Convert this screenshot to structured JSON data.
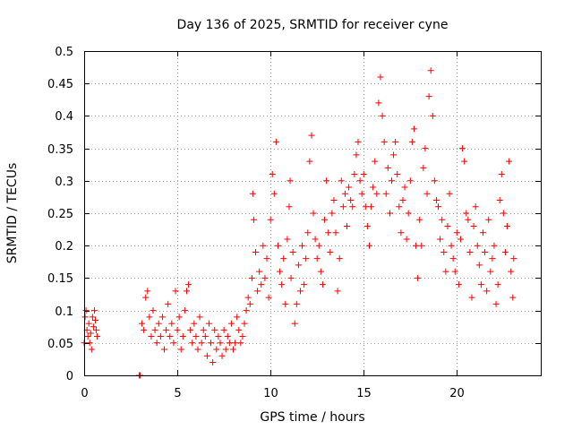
{
  "chart_data": {
    "type": "scatter",
    "title": "Day 136 of 2025, SRMTID for receiver cyne",
    "xlabel": "GPS time / hours",
    "ylabel": "SRMTID / TECUs",
    "xlim": [
      0,
      24.5
    ],
    "ylim": [
      0,
      0.5
    ],
    "xticks": [
      0,
      5,
      10,
      15,
      20
    ],
    "xtick_labels": [
      "0",
      "5",
      "10",
      "15",
      "20"
    ],
    "yticks": [
      0,
      0.05,
      0.1,
      0.15,
      0.2,
      0.25,
      0.3,
      0.35,
      0.4,
      0.45,
      0.5
    ],
    "ytick_labels": [
      "0",
      "0.05",
      "0.1",
      "0.15",
      "0.2",
      "0.25",
      "0.3",
      "0.35",
      "0.4",
      "0.45",
      "0.5"
    ],
    "grid": true,
    "marker": "plus",
    "color": "#ff0000",
    "series": [
      {
        "name": "SRMTID",
        "points": [
          [
            0.0,
            0.05
          ],
          [
            0.05,
            0.09
          ],
          [
            0.1,
            0.1
          ],
          [
            0.15,
            0.07
          ],
          [
            0.2,
            0.06
          ],
          [
            0.25,
            0.08
          ],
          [
            0.3,
            0.05
          ],
          [
            0.35,
            0.065
          ],
          [
            0.4,
            0.04
          ],
          [
            0.45,
            0.09
          ],
          [
            0.5,
            0.075
          ],
          [
            0.55,
            0.1
          ],
          [
            0.6,
            0.085
          ],
          [
            0.65,
            0.07
          ],
          [
            0.7,
            0.06
          ],
          [
            2.95,
            0.0
          ],
          [
            3.0,
            0.0
          ],
          [
            3.1,
            0.08
          ],
          [
            3.2,
            0.07
          ],
          [
            3.3,
            0.12
          ],
          [
            3.4,
            0.13
          ],
          [
            3.5,
            0.09
          ],
          [
            3.6,
            0.06
          ],
          [
            3.7,
            0.1
          ],
          [
            3.8,
            0.07
          ],
          [
            3.9,
            0.05
          ],
          [
            4.0,
            0.08
          ],
          [
            4.1,
            0.06
          ],
          [
            4.2,
            0.09
          ],
          [
            4.3,
            0.04
          ],
          [
            4.4,
            0.07
          ],
          [
            4.5,
            0.11
          ],
          [
            4.6,
            0.06
          ],
          [
            4.7,
            0.08
          ],
          [
            4.8,
            0.05
          ],
          [
            4.9,
            0.13
          ],
          [
            5.0,
            0.07
          ],
          [
            5.1,
            0.09
          ],
          [
            5.2,
            0.04
          ],
          [
            5.3,
            0.06
          ],
          [
            5.4,
            0.1
          ],
          [
            5.5,
            0.13
          ],
          [
            5.6,
            0.14
          ],
          [
            5.7,
            0.07
          ],
          [
            5.8,
            0.05
          ],
          [
            5.9,
            0.08
          ],
          [
            6.0,
            0.06
          ],
          [
            6.1,
            0.04
          ],
          [
            6.2,
            0.09
          ],
          [
            6.3,
            0.05
          ],
          [
            6.4,
            0.07
          ],
          [
            6.5,
            0.06
          ],
          [
            6.6,
            0.03
          ],
          [
            6.7,
            0.08
          ],
          [
            6.8,
            0.05
          ],
          [
            6.9,
            0.02
          ],
          [
            7.0,
            0.07
          ],
          [
            7.1,
            0.04
          ],
          [
            7.2,
            0.06
          ],
          [
            7.3,
            0.05
          ],
          [
            7.4,
            0.03
          ],
          [
            7.5,
            0.07
          ],
          [
            7.6,
            0.04
          ],
          [
            7.7,
            0.06
          ],
          [
            7.8,
            0.05
          ],
          [
            7.9,
            0.08
          ],
          [
            8.0,
            0.04
          ],
          [
            8.1,
            0.05
          ],
          [
            8.2,
            0.09
          ],
          [
            8.3,
            0.07
          ],
          [
            8.4,
            0.05
          ],
          [
            8.5,
            0.06
          ],
          [
            8.6,
            0.08
          ],
          [
            8.7,
            0.1
          ],
          [
            8.8,
            0.12
          ],
          [
            8.9,
            0.11
          ],
          [
            9.0,
            0.15
          ],
          [
            9.05,
            0.28
          ],
          [
            9.1,
            0.24
          ],
          [
            9.2,
            0.19
          ],
          [
            9.3,
            0.13
          ],
          [
            9.4,
            0.16
          ],
          [
            9.5,
            0.14
          ],
          [
            9.6,
            0.2
          ],
          [
            9.7,
            0.15
          ],
          [
            9.8,
            0.18
          ],
          [
            9.9,
            0.12
          ],
          [
            10.0,
            0.24
          ],
          [
            10.1,
            0.31
          ],
          [
            10.2,
            0.28
          ],
          [
            10.3,
            0.36
          ],
          [
            10.4,
            0.2
          ],
          [
            10.5,
            0.16
          ],
          [
            10.6,
            0.14
          ],
          [
            10.7,
            0.18
          ],
          [
            10.8,
            0.11
          ],
          [
            10.9,
            0.21
          ],
          [
            11.0,
            0.26
          ],
          [
            11.05,
            0.3
          ],
          [
            11.1,
            0.15
          ],
          [
            11.2,
            0.19
          ],
          [
            11.3,
            0.08
          ],
          [
            11.4,
            0.11
          ],
          [
            11.5,
            0.17
          ],
          [
            11.6,
            0.13
          ],
          [
            11.7,
            0.2
          ],
          [
            11.8,
            0.14
          ],
          [
            11.9,
            0.18
          ],
          [
            12.0,
            0.22
          ],
          [
            12.1,
            0.33
          ],
          [
            12.2,
            0.37
          ],
          [
            12.3,
            0.25
          ],
          [
            12.4,
            0.21
          ],
          [
            12.5,
            0.18
          ],
          [
            12.6,
            0.2
          ],
          [
            12.7,
            0.16
          ],
          [
            12.8,
            0.14
          ],
          [
            12.9,
            0.24
          ],
          [
            13.0,
            0.3
          ],
          [
            13.1,
            0.22
          ],
          [
            13.2,
            0.19
          ],
          [
            13.3,
            0.25
          ],
          [
            13.4,
            0.27
          ],
          [
            13.5,
            0.22
          ],
          [
            13.6,
            0.13
          ],
          [
            13.7,
            0.18
          ],
          [
            13.8,
            0.3
          ],
          [
            13.9,
            0.26
          ],
          [
            14.0,
            0.28
          ],
          [
            14.1,
            0.23
          ],
          [
            14.2,
            0.29
          ],
          [
            14.3,
            0.27
          ],
          [
            14.4,
            0.26
          ],
          [
            14.5,
            0.31
          ],
          [
            14.6,
            0.34
          ],
          [
            14.7,
            0.36
          ],
          [
            14.8,
            0.3
          ],
          [
            14.9,
            0.28
          ],
          [
            15.0,
            0.31
          ],
          [
            15.1,
            0.26
          ],
          [
            15.2,
            0.23
          ],
          [
            15.3,
            0.2
          ],
          [
            15.4,
            0.26
          ],
          [
            15.5,
            0.29
          ],
          [
            15.6,
            0.33
          ],
          [
            15.7,
            0.28
          ],
          [
            15.8,
            0.42
          ],
          [
            15.9,
            0.46
          ],
          [
            16.0,
            0.4
          ],
          [
            16.1,
            0.36
          ],
          [
            16.2,
            0.28
          ],
          [
            16.3,
            0.32
          ],
          [
            16.4,
            0.25
          ],
          [
            16.5,
            0.3
          ],
          [
            16.6,
            0.34
          ],
          [
            16.7,
            0.36
          ],
          [
            16.8,
            0.31
          ],
          [
            16.9,
            0.26
          ],
          [
            17.0,
            0.22
          ],
          [
            17.1,
            0.27
          ],
          [
            17.2,
            0.29
          ],
          [
            17.3,
            0.21
          ],
          [
            17.4,
            0.25
          ],
          [
            17.5,
            0.3
          ],
          [
            17.6,
            0.36
          ],
          [
            17.7,
            0.38
          ],
          [
            17.8,
            0.2
          ],
          [
            17.9,
            0.15
          ],
          [
            18.0,
            0.24
          ],
          [
            18.1,
            0.2
          ],
          [
            18.2,
            0.32
          ],
          [
            18.3,
            0.35
          ],
          [
            18.4,
            0.28
          ],
          [
            18.5,
            0.43
          ],
          [
            18.6,
            0.47
          ],
          [
            18.7,
            0.4
          ],
          [
            18.8,
            0.3
          ],
          [
            18.9,
            0.27
          ],
          [
            19.0,
            0.26
          ],
          [
            19.1,
            0.21
          ],
          [
            19.2,
            0.24
          ],
          [
            19.3,
            0.19
          ],
          [
            19.4,
            0.16
          ],
          [
            19.5,
            0.23
          ],
          [
            19.6,
            0.28
          ],
          [
            19.7,
            0.2
          ],
          [
            19.8,
            0.18
          ],
          [
            19.9,
            0.16
          ],
          [
            20.0,
            0.22
          ],
          [
            20.1,
            0.14
          ],
          [
            20.2,
            0.21
          ],
          [
            20.3,
            0.35
          ],
          [
            20.4,
            0.33
          ],
          [
            20.5,
            0.25
          ],
          [
            20.6,
            0.24
          ],
          [
            20.7,
            0.19
          ],
          [
            20.8,
            0.12
          ],
          [
            20.9,
            0.23
          ],
          [
            21.0,
            0.26
          ],
          [
            21.1,
            0.2
          ],
          [
            21.2,
            0.17
          ],
          [
            21.3,
            0.14
          ],
          [
            21.4,
            0.22
          ],
          [
            21.5,
            0.19
          ],
          [
            21.6,
            0.13
          ],
          [
            21.7,
            0.24
          ],
          [
            21.8,
            0.16
          ],
          [
            21.9,
            0.18
          ],
          [
            22.0,
            0.2
          ],
          [
            22.1,
            0.11
          ],
          [
            22.2,
            0.14
          ],
          [
            22.3,
            0.27
          ],
          [
            22.4,
            0.31
          ],
          [
            22.5,
            0.25
          ],
          [
            22.6,
            0.19
          ],
          [
            22.7,
            0.23
          ],
          [
            22.8,
            0.33
          ],
          [
            22.9,
            0.16
          ],
          [
            23.0,
            0.12
          ],
          [
            23.05,
            0.18
          ]
        ]
      }
    ]
  }
}
